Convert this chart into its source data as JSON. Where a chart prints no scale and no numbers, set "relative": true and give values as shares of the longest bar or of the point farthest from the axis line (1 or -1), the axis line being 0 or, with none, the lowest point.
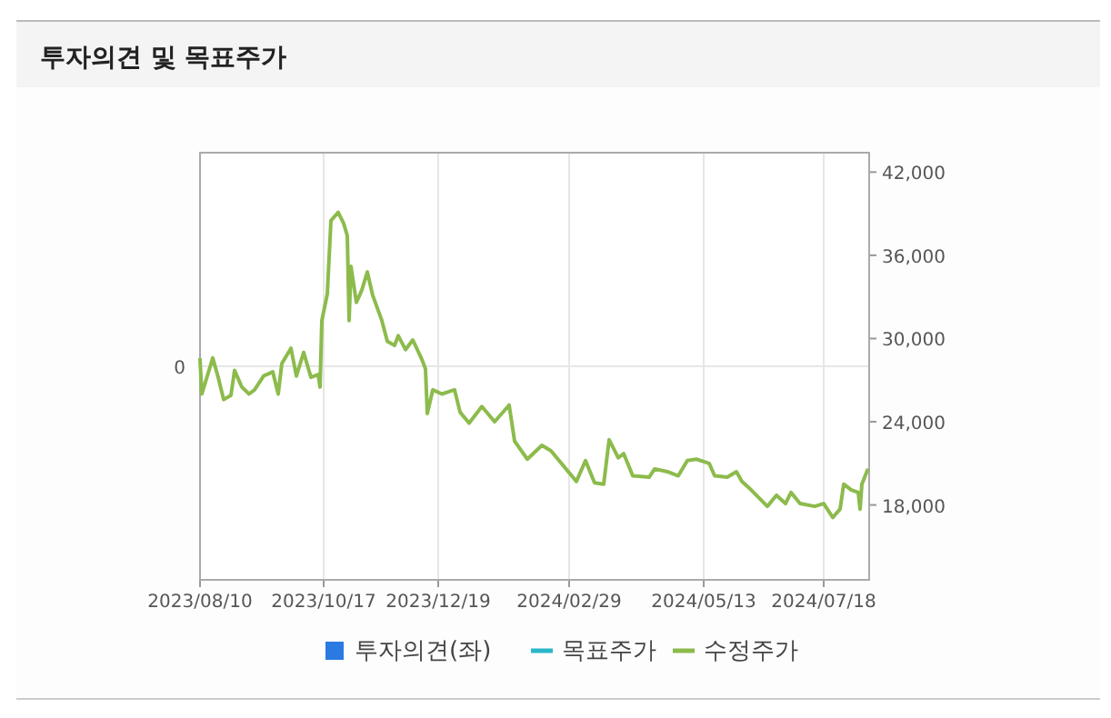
{
  "chart_data": {
    "type": "line",
    "title": "투자의견 및 목표주가",
    "xlim": [
      "2023-08-10",
      "2024-08-12"
    ],
    "xticks": [
      {
        "value": "2023-08-10",
        "label": "2023/08/10"
      },
      {
        "value": "2023-10-17",
        "label": "2023/10/17"
      },
      {
        "value": "2023-12-19",
        "label": "2023/12/19"
      },
      {
        "value": "2024-02-29",
        "label": "2024/02/29"
      },
      {
        "value": "2024-05-13",
        "label": "2024/05/13"
      },
      {
        "value": "2024-07-18",
        "label": "2024/07/18"
      }
    ],
    "relative": true,
    "annotations": [
      "0"
    ],
    "y2lim": [
      12600,
      43400
    ],
    "y2ticks": [
      {
        "value": 18000,
        "label": "18,000"
      },
      {
        "value": 24000,
        "label": "24,000"
      },
      {
        "value": 30000,
        "label": "30,000"
      },
      {
        "value": 36000,
        "label": "36,000"
      },
      {
        "value": 42000,
        "label": "42,000"
      }
    ],
    "grid": true,
    "legend": "bottom",
    "series": [
      {
        "name": "투자의견(좌)",
        "type": "bar",
        "color": "#2a7ae2"
      },
      {
        "name": "목표주가",
        "type": "line",
        "axis": "y2",
        "color": "#2ab7c8"
      },
      {
        "name": "수정주가",
        "axis": "y2",
        "color": "#8cbb4c",
        "x": [
          "2023-08-10",
          "2023-08-11",
          "2023-08-17",
          "2023-08-20",
          "2023-08-23",
          "2023-08-27",
          "2023-08-29",
          "2023-09-02",
          "2023-09-06",
          "2023-09-09",
          "2023-09-14",
          "2023-09-19",
          "2023-09-22",
          "2023-09-24",
          "2023-09-29",
          "2023-10-02",
          "2023-10-06",
          "2023-10-10",
          "2023-10-14",
          "2023-10-15",
          "2023-10-16",
          "2023-10-19",
          "2023-10-21",
          "2023-10-25",
          "2023-10-28",
          "2023-10-30",
          "2023-10-31",
          "2023-11-01",
          "2023-11-04",
          "2023-11-07",
          "2023-11-10",
          "2023-11-13",
          "2023-11-18",
          "2023-11-21",
          "2023-11-25",
          "2023-11-27",
          "2023-12-01",
          "2023-12-05",
          "2023-12-10",
          "2023-12-12",
          "2023-12-13",
          "2023-12-16",
          "2023-12-21",
          "2023-12-28",
          "2023-12-31",
          "2024-01-05",
          "2024-01-12",
          "2024-01-19",
          "2024-01-27",
          "2024-01-30",
          "2024-02-06",
          "2024-02-14",
          "2024-02-19",
          "2024-02-26",
          "2024-03-04",
          "2024-03-09",
          "2024-03-14",
          "2024-03-19",
          "2024-03-22",
          "2024-03-27",
          "2024-03-30",
          "2024-04-04",
          "2024-04-13",
          "2024-04-16",
          "2024-04-23",
          "2024-04-29",
          "2024-05-04",
          "2024-05-09",
          "2024-05-16",
          "2024-05-19",
          "2024-05-26",
          "2024-05-31",
          "2024-06-03",
          "2024-06-08",
          "2024-06-17",
          "2024-06-22",
          "2024-06-27",
          "2024-06-30",
          "2024-07-05",
          "2024-07-13",
          "2024-07-18",
          "2024-07-23",
          "2024-07-27",
          "2024-07-29",
          "2024-08-02",
          "2024-08-06",
          "2024-08-07",
          "2024-08-08",
          "2024-08-11"
        ],
        "values": [
          28500,
          26000,
          28600,
          27200,
          25600,
          25900,
          27700,
          26500,
          26000,
          26300,
          27300,
          27600,
          26000,
          28200,
          29300,
          27300,
          29000,
          27200,
          27400,
          26500,
          31300,
          33200,
          38500,
          39100,
          38300,
          37400,
          31300,
          35200,
          32600,
          33500,
          34800,
          33100,
          31300,
          29800,
          29500,
          30200,
          29200,
          29900,
          28500,
          27800,
          24600,
          26300,
          26000,
          26300,
          24700,
          23900,
          25100,
          24000,
          25200,
          22600,
          21300,
          22300,
          21900,
          20800,
          19700,
          21200,
          19600,
          19500,
          22700,
          21400,
          21700,
          20100,
          20000,
          20600,
          20400,
          20100,
          21200,
          21300,
          21000,
          20100,
          20000,
          20400,
          19700,
          19100,
          17900,
          18700,
          18100,
          18900,
          18100,
          17900,
          18100,
          17100,
          17700,
          19500,
          19100,
          18900,
          17700,
          19500,
          20500
        ]
      }
    ]
  }
}
